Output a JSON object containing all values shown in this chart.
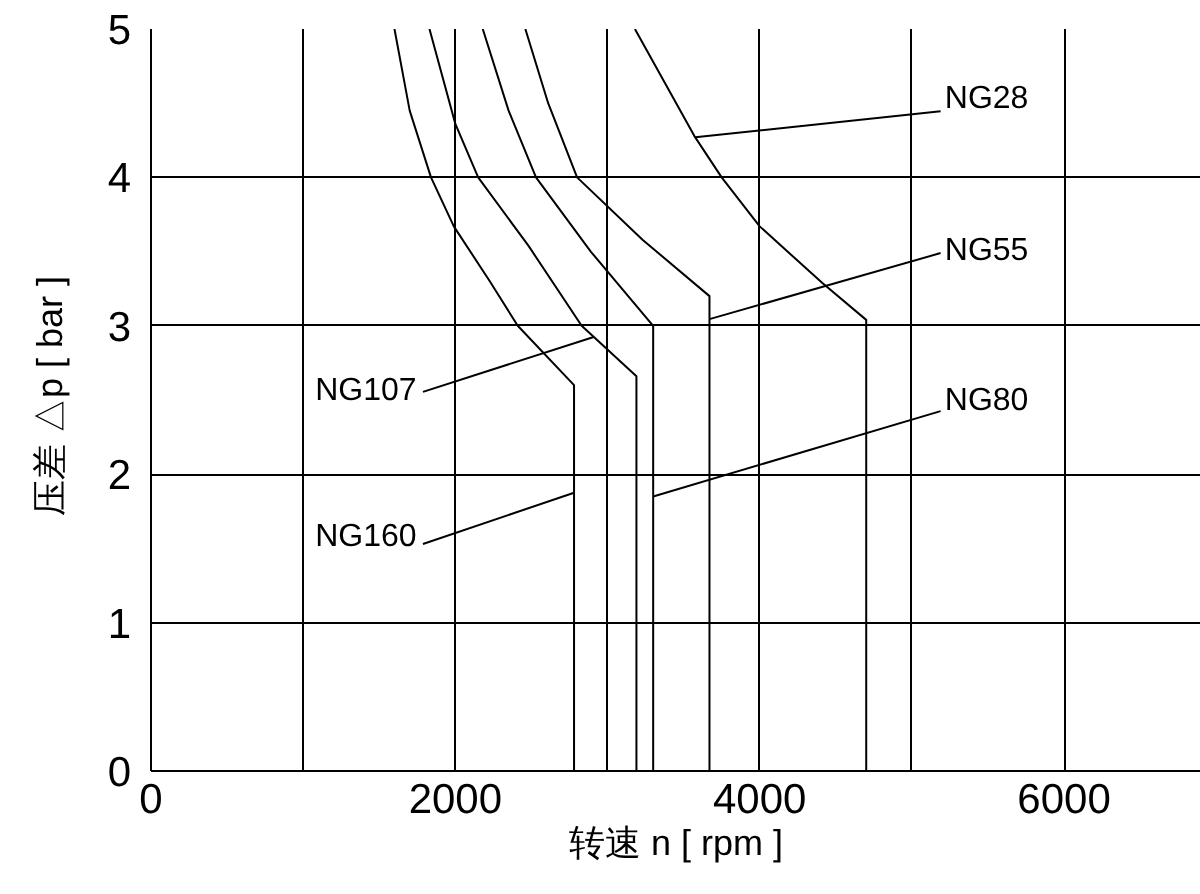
{
  "chart_data": {
    "type": "line",
    "xlabel": "转速 n [ rpm ]",
    "ylabel": "压差 △p [ bar ]",
    "xlim": [
      0,
      6900
    ],
    "ylim": [
      0,
      5
    ],
    "xticks": [
      0,
      {
        "value": 1000,
        "label": null
      },
      2000,
      {
        "value": 3000,
        "label": null
      },
      4000,
      {
        "value": 5000,
        "label": null
      },
      6000
    ],
    "yticks": [
      0,
      1,
      2,
      3,
      4,
      5
    ],
    "grid": true,
    "series": [
      {
        "name": "NG28",
        "color": "#000000",
        "x": [
          3180,
          3570,
          3750,
          4000,
          4410,
          4700,
          4700
        ],
        "values": [
          5,
          4.28,
          4,
          3.67,
          3.29,
          3.04,
          0
        ]
      },
      {
        "name": "NG55",
        "color": "#000000",
        "x": [
          2460,
          2610,
          2800,
          3230,
          3670,
          3670
        ],
        "values": [
          5,
          4.5,
          4,
          3.58,
          3.2,
          0
        ]
      },
      {
        "name": "NG80",
        "color": "#000000",
        "x": [
          2180,
          2350,
          2530,
          2890,
          3300,
          3300
        ],
        "values": [
          5,
          4.45,
          4,
          3.5,
          3,
          0
        ]
      },
      {
        "name": "NG107",
        "color": "#000000",
        "x": [
          1830,
          2000,
          2150,
          2480,
          2830,
          3190,
          3190
        ],
        "values": [
          5,
          4.36,
          4,
          3.54,
          3,
          2.66,
          0
        ]
      },
      {
        "name": "NG160",
        "color": "#000000",
        "x": [
          1600,
          1700,
          1840,
          1990,
          2220,
          2410,
          2780,
          2780
        ],
        "values": [
          5,
          4.45,
          4,
          3.67,
          3.31,
          3,
          2.6,
          0
        ]
      }
    ]
  }
}
